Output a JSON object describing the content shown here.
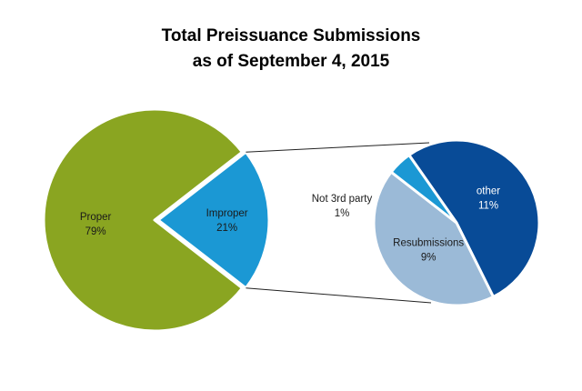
{
  "chart_data": {
    "type": "pie",
    "title": [
      "Total Preissuance Submissions",
      "as of September 4, 2015"
    ],
    "main_pie": {
      "slices": [
        {
          "label": "Proper",
          "value": 79,
          "display": "79%",
          "color": "#8aa521"
        },
        {
          "label": "Improper",
          "value": 21,
          "display": "21%",
          "color": "#1b98d4"
        }
      ]
    },
    "breakdown_pie": {
      "of": "Improper",
      "slices": [
        {
          "label": "other",
          "value": 11,
          "display": "11%",
          "color": "#084b97"
        },
        {
          "label": "Resubmissions",
          "value": 9,
          "display": "9%",
          "color": "#9bbad7"
        },
        {
          "label": "Not 3rd party",
          "value": 1,
          "display": "1%",
          "color": "#1b98d4"
        }
      ]
    }
  }
}
